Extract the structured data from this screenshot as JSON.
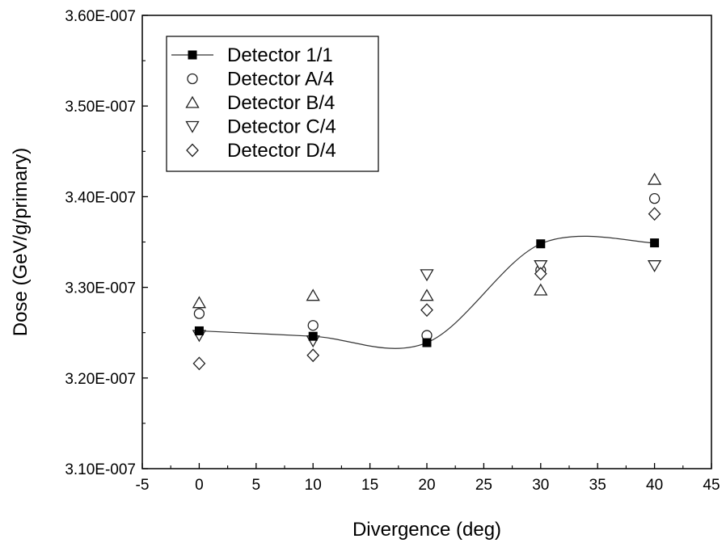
{
  "chart_data": {
    "type": "scatter",
    "title": "",
    "xlabel": "Divergence (deg)",
    "ylabel": "Dose (GeV/g/primary)",
    "xlim": [
      -5,
      45
    ],
    "ylim": [
      3.1e-07,
      3.6e-07
    ],
    "x_ticks": [
      -5,
      0,
      5,
      10,
      15,
      20,
      25,
      30,
      35,
      40,
      45
    ],
    "x_tick_labels": [
      "-5",
      "0",
      "5",
      "10",
      "15",
      "20",
      "25",
      "30",
      "35",
      "40",
      "45"
    ],
    "y_ticks": [
      3.1e-07,
      3.2e-07,
      3.3e-07,
      3.4e-07,
      3.5e-07,
      3.6e-07
    ],
    "y_tick_labels": [
      "3.10E-007",
      "3.20E-007",
      "3.30E-007",
      "3.40E-007",
      "3.50E-007",
      "3.60E-007"
    ],
    "grid": false,
    "legend_position": "top-left",
    "series": [
      {
        "name": "Detector 1/1",
        "marker": "square-filled",
        "smooth_line": true,
        "x": [
          0,
          10,
          20,
          30,
          40
        ],
        "y": [
          3.252e-07,
          3.246e-07,
          3.239e-07,
          3.348e-07,
          3.349e-07
        ]
      },
      {
        "name": "Detector A/4",
        "marker": "circle-open",
        "x": [
          0,
          10,
          20,
          30,
          40
        ],
        "y": [
          3.271e-07,
          3.258e-07,
          3.247e-07,
          3.319e-07,
          3.398e-07
        ]
      },
      {
        "name": "Detector B/4",
        "marker": "triangle-up-open",
        "x": [
          0,
          10,
          20,
          30,
          40
        ],
        "y": [
          3.283e-07,
          3.291e-07,
          3.291e-07,
          3.297e-07,
          3.419e-07
        ]
      },
      {
        "name": "Detector C/4",
        "marker": "triangle-down-open",
        "x": [
          0,
          10,
          20,
          30,
          40
        ],
        "y": [
          3.247e-07,
          3.241e-07,
          3.314e-07,
          3.324e-07,
          3.324e-07
        ]
      },
      {
        "name": "Detector D/4",
        "marker": "diamond-open",
        "x": [
          0,
          10,
          20,
          30,
          40
        ],
        "y": [
          3.216e-07,
          3.225e-07,
          3.275e-07,
          3.315e-07,
          3.381e-07
        ]
      }
    ]
  }
}
